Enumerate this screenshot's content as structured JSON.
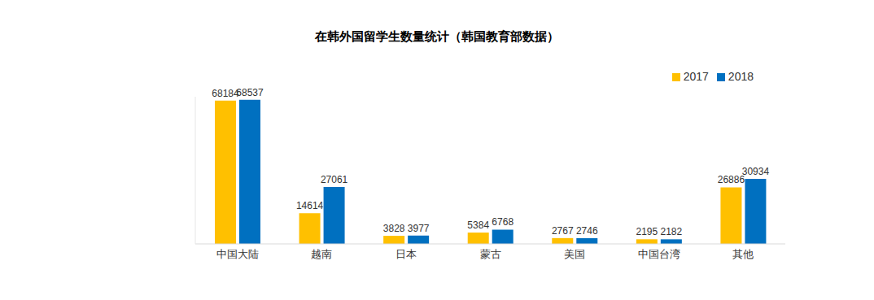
{
  "chart_data": {
    "type": "bar",
    "title": "在韩外国留学生数量统计（韩国教育部数据）",
    "categories": [
      "中国大陆",
      "越南",
      "日本",
      "蒙古",
      "美国",
      "中国台湾",
      "其他"
    ],
    "series": [
      {
        "name": "2017",
        "color": "#FFC000",
        "values": [
          68184,
          14614,
          3828,
          5384,
          2767,
          2195,
          26886
        ]
      },
      {
        "name": "2018",
        "color": "#0070C0",
        "values": [
          68537,
          27061,
          3977,
          6768,
          2746,
          2182,
          30934
        ]
      }
    ],
    "ylim": [
      0,
      70000
    ],
    "grid": false,
    "legend": "top-right",
    "data_labels": true,
    "tick_labels": "x"
  }
}
